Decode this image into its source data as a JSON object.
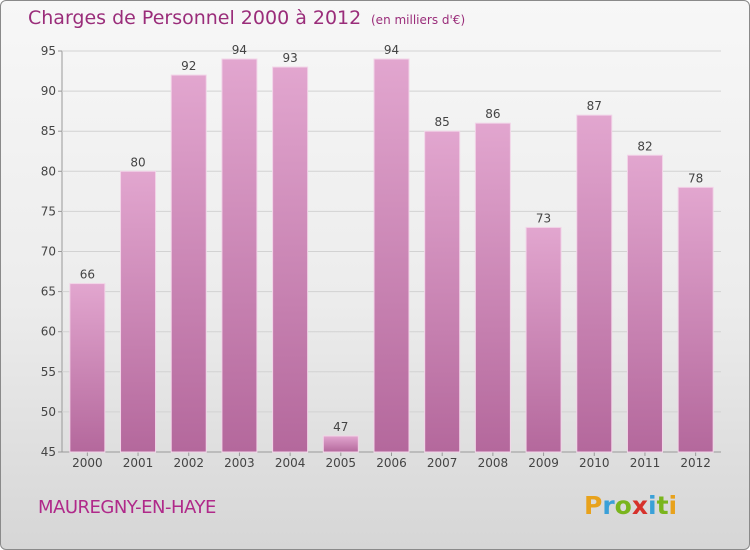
{
  "title": "Charges de Personnel 2000 à 2012",
  "subtitle": "(en milliers d'€)",
  "town": "MAUREGNY-EN-HAYE",
  "logo": {
    "letters": [
      "P",
      "r",
      "o",
      "x",
      "i",
      "t",
      "i"
    ],
    "colors": [
      "#e8a21c",
      "#3aa0d8",
      "#7ab51d",
      "#d6312b",
      "#3aa0d8",
      "#7ab51d",
      "#e8a21c"
    ]
  },
  "colors": {
    "bar": "#d58fbf",
    "bar_dark": "#b86a9f",
    "text": "#9a2d7a"
  },
  "chart_data": {
    "type": "bar",
    "categories": [
      "2000",
      "2001",
      "2002",
      "2003",
      "2004",
      "2005",
      "2006",
      "2007",
      "2008",
      "2009",
      "2010",
      "2011",
      "2012"
    ],
    "values": [
      66,
      80,
      92,
      94,
      93,
      47,
      94,
      85,
      86,
      73,
      87,
      82,
      78
    ],
    "ylim": [
      45,
      95
    ],
    "yticks": [
      45,
      50,
      55,
      60,
      65,
      70,
      75,
      80,
      85,
      90,
      95
    ],
    "grid": true,
    "title": "Charges de Personnel 2000 à 2012",
    "subtitle": "(en milliers d'€)"
  }
}
